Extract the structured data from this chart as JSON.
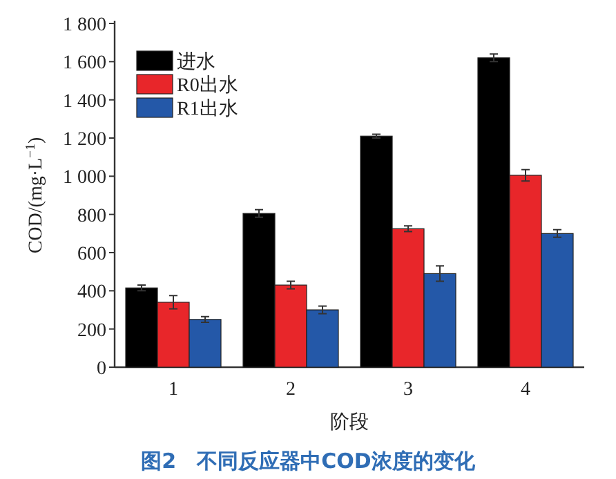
{
  "chart_data": {
    "type": "bar",
    "title": "图2　不同反应器中COD浓度的变化",
    "xlabel": "阶段",
    "ylabel": "COD/(mg·L$^{−1}$)",
    "categories": [
      "1",
      "2",
      "3",
      "4"
    ],
    "series": [
      {
        "name": "进水",
        "color": "#000000",
        "values": [
          415,
          805,
          1210,
          1620
        ],
        "errors": [
          15,
          20,
          10,
          20
        ]
      },
      {
        "name": "R0出水",
        "color": "#e8262a",
        "values": [
          340,
          430,
          725,
          1005
        ],
        "errors": [
          35,
          20,
          15,
          30
        ]
      },
      {
        "name": "R1出水",
        "color": "#2458a8",
        "values": [
          250,
          300,
          490,
          700
        ],
        "errors": [
          15,
          20,
          40,
          20
        ]
      }
    ],
    "ylim": [
      0,
      1800
    ],
    "yticks": [
      0,
      200,
      400,
      600,
      800,
      {
        "value": 1000,
        "label": "1 000"
      },
      {
        "value": 1200,
        "label": "1 200"
      },
      {
        "value": 1400,
        "label": "1 400"
      },
      {
        "value": 1600,
        "label": "1 600"
      },
      {
        "value": 1800,
        "label": "1 800"
      }
    ],
    "legend": "top left"
  }
}
